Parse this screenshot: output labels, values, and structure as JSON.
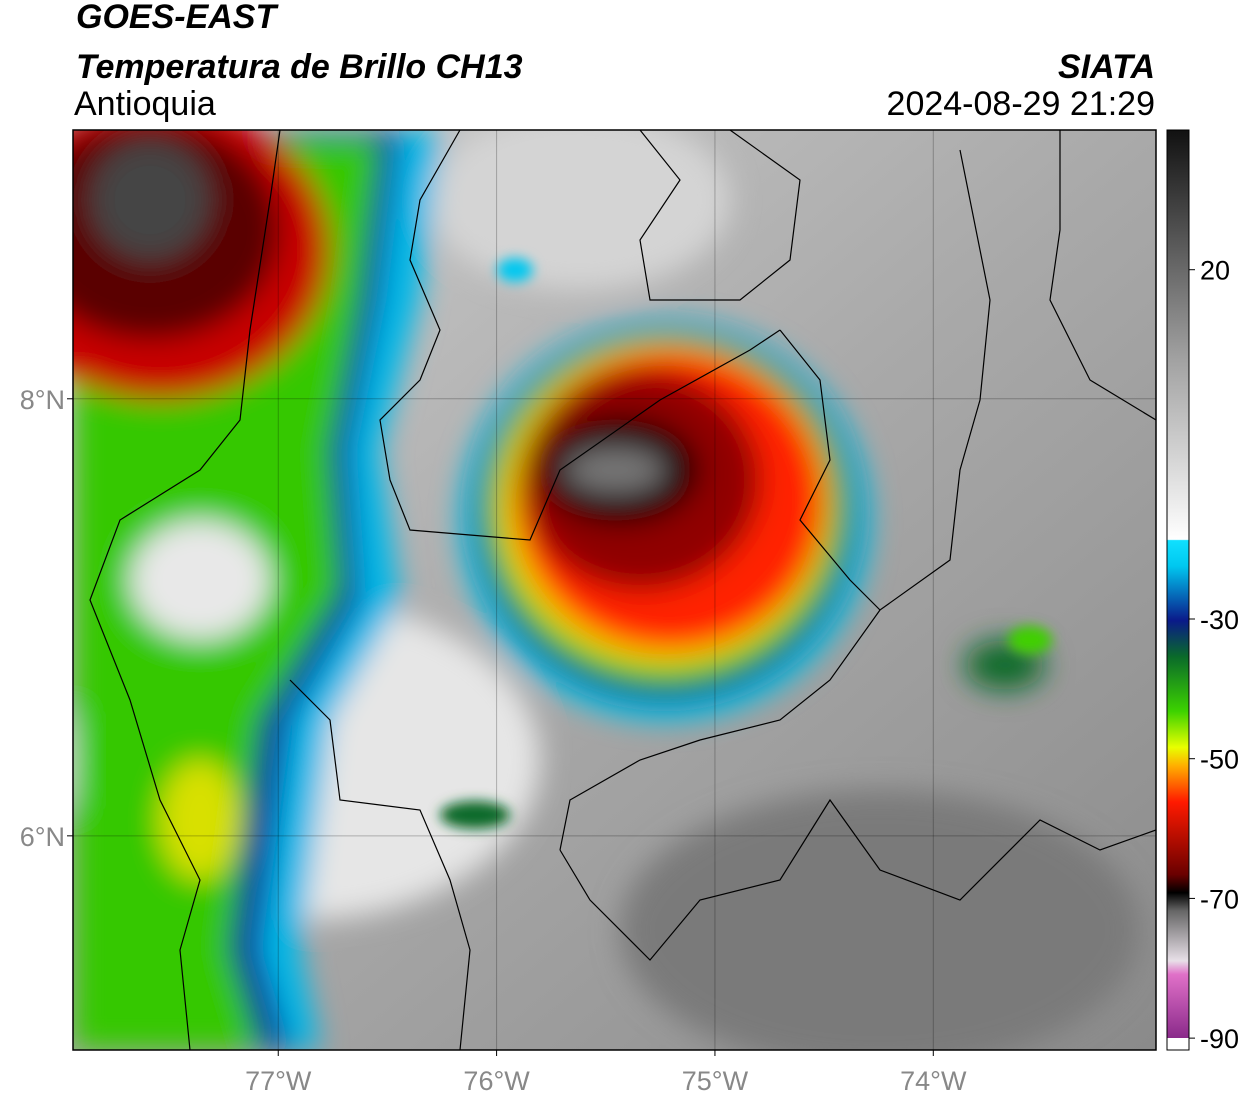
{
  "header": {
    "satellite": "GOES-EAST",
    "product": "Temperatura de Brillo CH13",
    "region": "Antioquia",
    "source": "SIATA",
    "datetime": "2024-08-29 21:29"
  },
  "map": {
    "lonlim": [
      -77.94,
      -72.98
    ],
    "latlim": [
      5.02,
      9.23
    ],
    "xticks": [
      {
        "value": -77,
        "label": "77°W"
      },
      {
        "value": -76,
        "label": "76°W"
      },
      {
        "value": -75,
        "label": "75°W"
      },
      {
        "value": -74,
        "label": "74°W"
      }
    ],
    "yticks": [
      {
        "value": 8,
        "label": "8°N"
      },
      {
        "value": 6,
        "label": "6°N"
      }
    ],
    "grid": true
  },
  "colorbar": {
    "lim": [
      -91.7,
      40
    ],
    "ticks": [
      20,
      -30,
      -50,
      -70,
      -90
    ]
  }
}
